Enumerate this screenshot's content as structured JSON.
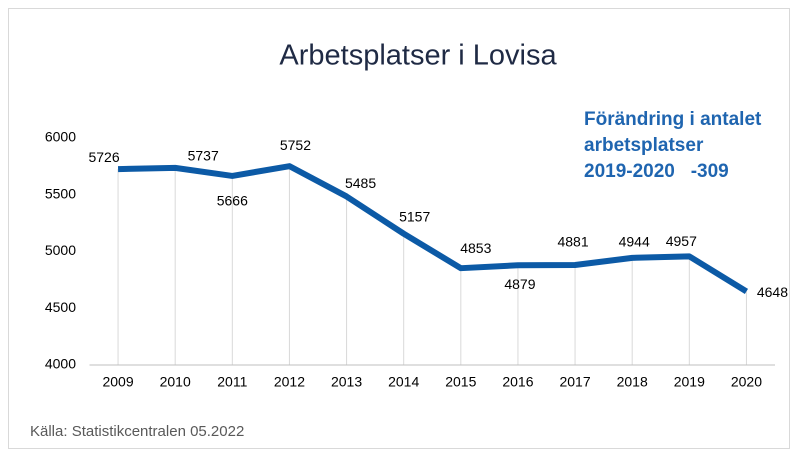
{
  "chart_data": {
    "type": "line",
    "title": "Arbetsplatser i Lovisa",
    "annotation": [
      "Förändring i antalet",
      "arbetsplatser",
      "2019-2020   -309"
    ],
    "source": "Källa: Statistikcentralen 05.2022",
    "categories": [
      "2009",
      "2010",
      "2011",
      "2012",
      "2013",
      "2014",
      "2015",
      "2016",
      "2017",
      "2018",
      "2019",
      "2020"
    ],
    "values": [
      5726,
      5737,
      5666,
      5752,
      5485,
      5157,
      4853,
      4879,
      4881,
      4944,
      4957,
      4648
    ],
    "color": "#0c5aa6",
    "ylim": [
      4000,
      6000
    ],
    "yticks": [
      4000,
      4500,
      5000,
      5500,
      6000
    ],
    "drop_lines": true
  }
}
